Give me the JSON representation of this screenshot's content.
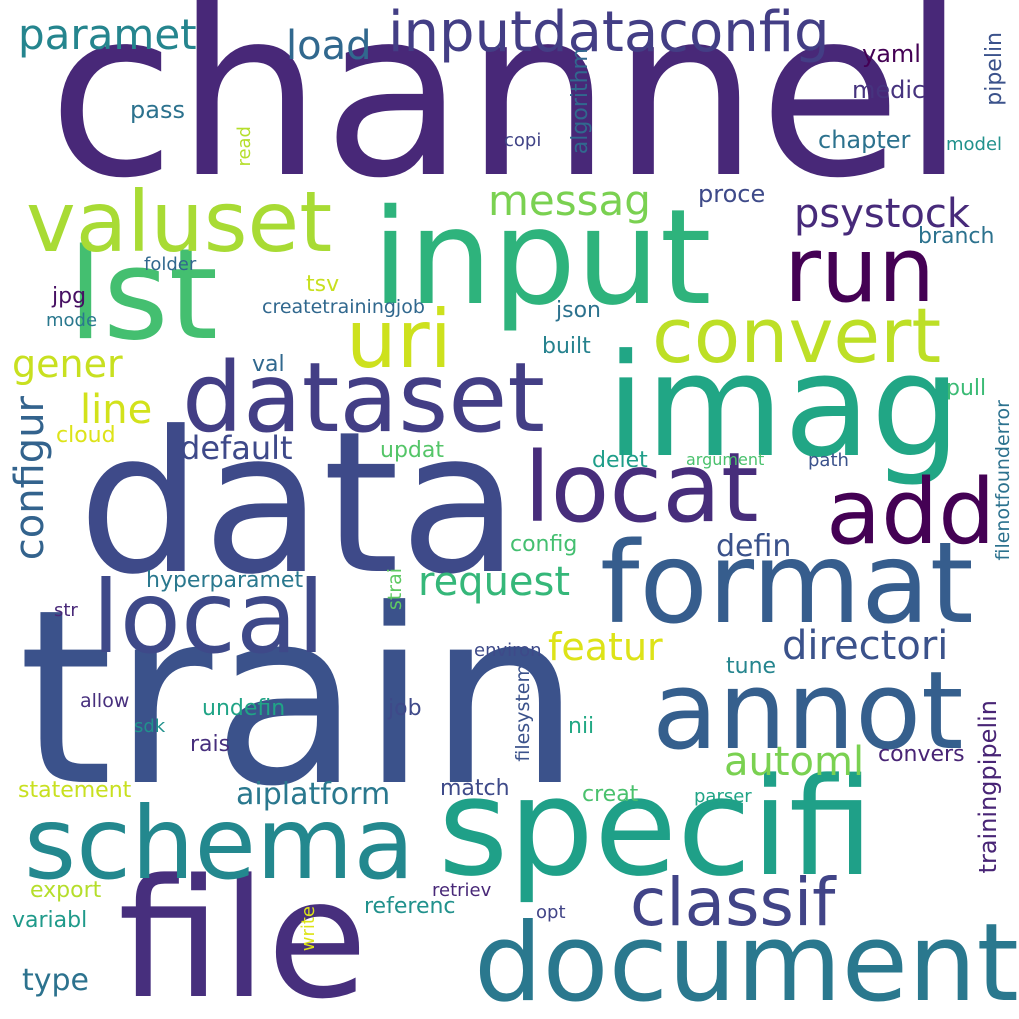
{
  "words": [
    {
      "text": "channel",
      "color": "#482878",
      "orientation": "horizontal"
    },
    {
      "text": "train",
      "color": "#3b528b",
      "orientation": "horizontal"
    },
    {
      "text": "data",
      "color": "#3e4a89",
      "orientation": "horizontal"
    },
    {
      "text": "file",
      "color": "#472f7d",
      "orientation": "horizontal"
    },
    {
      "text": "imag",
      "color": "#21a685",
      "orientation": "horizontal"
    },
    {
      "text": "specifi",
      "color": "#1fa088",
      "orientation": "horizontal"
    },
    {
      "text": "input",
      "color": "#2eb37c",
      "orientation": "horizontal"
    },
    {
      "text": "format",
      "color": "#365d8d",
      "orientation": "horizontal"
    },
    {
      "text": "document",
      "color": "#2a788e",
      "orientation": "horizontal"
    },
    {
      "text": "schema",
      "color": "#23888e",
      "orientation": "horizontal"
    },
    {
      "text": "lst",
      "color": "#44bf70",
      "orientation": "horizontal"
    },
    {
      "text": "dataset",
      "color": "#433e85",
      "orientation": "horizontal"
    },
    {
      "text": "local",
      "color": "#3e4989",
      "orientation": "horizontal"
    },
    {
      "text": "annot",
      "color": "#355f8d",
      "orientation": "horizontal"
    },
    {
      "text": "locat",
      "color": "#472d7b",
      "orientation": "horizontal"
    },
    {
      "text": "valuset",
      "color": "#a8db34",
      "orientation": "horizontal"
    },
    {
      "text": "run",
      "color": "#440154",
      "orientation": "horizontal"
    },
    {
      "text": "convert",
      "color": "#bddf26",
      "orientation": "horizontal"
    },
    {
      "text": "uri",
      "color": "#cde11d",
      "orientation": "horizontal"
    },
    {
      "text": "add",
      "color": "#440154",
      "orientation": "horizontal"
    },
    {
      "text": "classif",
      "color": "#414487",
      "orientation": "horizontal"
    },
    {
      "text": "inputdataconfig",
      "color": "#433e85",
      "orientation": "horizontal"
    },
    {
      "text": "paramet",
      "color": "#25858e",
      "orientation": "horizontal"
    },
    {
      "text": "load",
      "color": "#31688e",
      "orientation": "horizontal"
    },
    {
      "text": "messag",
      "color": "#7ad151",
      "orientation": "horizontal"
    },
    {
      "text": "psystock",
      "color": "#472a7a",
      "orientation": "horizontal"
    },
    {
      "text": "configur",
      "color": "#33638d",
      "orientation": "vertical"
    },
    {
      "text": "gener",
      "color": "#c8e020",
      "orientation": "horizontal"
    },
    {
      "text": "line",
      "color": "#d2e21b",
      "orientation": "horizontal"
    },
    {
      "text": "request",
      "color": "#35b779",
      "orientation": "horizontal"
    },
    {
      "text": "directori",
      "color": "#3b528b",
      "orientation": "horizontal"
    },
    {
      "text": "featur",
      "color": "#dde318",
      "orientation": "horizontal"
    },
    {
      "text": "automl",
      "color": "#7ad151",
      "orientation": "horizontal"
    },
    {
      "text": "aiplatform",
      "color": "#2a788e",
      "orientation": "horizontal"
    },
    {
      "text": "default",
      "color": "#3e4989",
      "orientation": "horizontal"
    },
    {
      "text": "defin",
      "color": "#3b528b",
      "orientation": "horizontal"
    },
    {
      "text": "trainingpipelin",
      "color": "#482475",
      "orientation": "vertical"
    },
    {
      "text": "pipelin",
      "color": "#3b528b",
      "orientation": "vertical"
    },
    {
      "text": "filenotfounderror",
      "color": "#2c728e",
      "orientation": "vertical"
    },
    {
      "text": "yaml",
      "color": "#440154",
      "orientation": "horizontal"
    },
    {
      "text": "medic",
      "color": "#46337e",
      "orientation": "horizontal"
    },
    {
      "text": "chapter",
      "color": "#2c728e",
      "orientation": "horizontal"
    },
    {
      "text": "model",
      "color": "#21918c",
      "orientation": "horizontal"
    },
    {
      "text": "algorithm",
      "color": "#31688e",
      "orientation": "vertical"
    },
    {
      "text": "copi",
      "color": "#414487",
      "orientation": "horizontal"
    },
    {
      "text": "pass",
      "color": "#2c728e",
      "orientation": "horizontal"
    },
    {
      "text": "read",
      "color": "#b5de2b",
      "orientation": "vertical"
    },
    {
      "text": "proce",
      "color": "#3e4a89",
      "orientation": "horizontal"
    },
    {
      "text": "branch",
      "color": "#2c728e",
      "orientation": "horizontal"
    },
    {
      "text": "folder",
      "color": "#31688e",
      "orientation": "horizontal"
    },
    {
      "text": "tsv",
      "color": "#c8e020",
      "orientation": "horizontal"
    },
    {
      "text": "jpg",
      "color": "#471063",
      "orientation": "horizontal"
    },
    {
      "text": "createtrainingjob",
      "color": "#31688e",
      "orientation": "horizontal"
    },
    {
      "text": "mode",
      "color": "#2a788e",
      "orientation": "horizontal"
    },
    {
      "text": "json",
      "color": "#2c728e",
      "orientation": "horizontal"
    },
    {
      "text": "built",
      "color": "#26828e",
      "orientation": "horizontal"
    },
    {
      "text": "val",
      "color": "#31688e",
      "orientation": "horizontal"
    },
    {
      "text": "pull",
      "color": "#3bbb75",
      "orientation": "horizontal"
    },
    {
      "text": "cloud",
      "color": "#dde318",
      "orientation": "horizontal"
    },
    {
      "text": "updat",
      "color": "#54c568",
      "orientation": "horizontal"
    },
    {
      "text": "delet",
      "color": "#1f9e89",
      "orientation": "horizontal"
    },
    {
      "text": "argument",
      "color": "#4ac16d",
      "orientation": "horizontal"
    },
    {
      "text": "path",
      "color": "#3b528b",
      "orientation": "horizontal"
    },
    {
      "text": "config",
      "color": "#44bf70",
      "orientation": "horizontal"
    },
    {
      "text": "hyperparamet",
      "color": "#2a788e",
      "orientation": "horizontal"
    },
    {
      "text": "strai",
      "color": "#5ec962",
      "orientation": "vertical"
    },
    {
      "text": "str",
      "color": "#482878",
      "orientation": "horizontal"
    },
    {
      "text": "environ",
      "color": "#3e4a89",
      "orientation": "horizontal"
    },
    {
      "text": "filesystem",
      "color": "#3b528b",
      "orientation": "vertical"
    },
    {
      "text": "tune",
      "color": "#25858e",
      "orientation": "horizontal"
    },
    {
      "text": "allow",
      "color": "#472f7d",
      "orientation": "horizontal"
    },
    {
      "text": "undefin",
      "color": "#20a486",
      "orientation": "horizontal"
    },
    {
      "text": "job",
      "color": "#3e4989",
      "orientation": "horizontal"
    },
    {
      "text": "nii",
      "color": "#22a884",
      "orientation": "horizontal"
    },
    {
      "text": "sdk",
      "color": "#21918c",
      "orientation": "horizontal"
    },
    {
      "text": "rais",
      "color": "#472f7d",
      "orientation": "horizontal"
    },
    {
      "text": "convers",
      "color": "#482475",
      "orientation": "horizontal"
    },
    {
      "text": "statement",
      "color": "#c8e020",
      "orientation": "horizontal"
    },
    {
      "text": "match",
      "color": "#3e4a89",
      "orientation": "horizontal"
    },
    {
      "text": "creat",
      "color": "#4ac16d",
      "orientation": "horizontal"
    },
    {
      "text": "parser",
      "color": "#20a486",
      "orientation": "horizontal"
    },
    {
      "text": "export",
      "color": "#b5de2b",
      "orientation": "horizontal"
    },
    {
      "text": "retriev",
      "color": "#482878",
      "orientation": "horizontal"
    },
    {
      "text": "referenc",
      "color": "#21918c",
      "orientation": "horizontal"
    },
    {
      "text": "variabl",
      "color": "#1f9a8a",
      "orientation": "horizontal"
    },
    {
      "text": "opt",
      "color": "#414487",
      "orientation": "horizontal"
    },
    {
      "text": "write",
      "color": "#dde318",
      "orientation": "vertical"
    },
    {
      "text": "type",
      "color": "#2c728e",
      "orientation": "horizontal"
    }
  ]
}
